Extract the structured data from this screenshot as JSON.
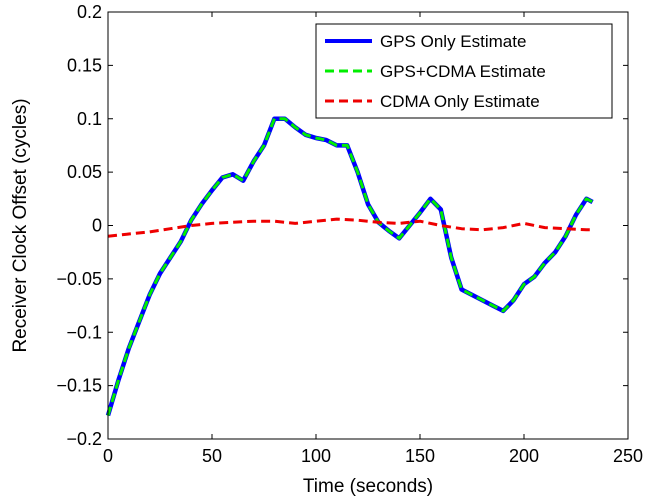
{
  "chart_data": {
    "type": "line",
    "title": "",
    "xlabel": "Time (seconds)",
    "ylabel": "Receiver Clock Offset (cycles)",
    "xlim": [
      0,
      250
    ],
    "ylim": [
      -0.2,
      0.2
    ],
    "grid": false,
    "legend_position": "top-right",
    "x_ticks": [
      0,
      50,
      100,
      150,
      200,
      250
    ],
    "x_tick_labels": [
      "0",
      "50",
      "100",
      "150",
      "200",
      "250"
    ],
    "y_ticks": [
      -0.2,
      -0.15,
      -0.1,
      -0.05,
      0,
      0.05,
      0.1,
      0.15,
      0.2
    ],
    "y_tick_labels": [
      "−0.2",
      "−0.15",
      "−0.1",
      "−0.05",
      "0",
      "0.05",
      "0.1",
      "0.15",
      "0.2"
    ],
    "series": [
      {
        "name": "GPS Only Estimate",
        "color": "#0000ff",
        "style": "solid",
        "x": [
          0,
          5,
          10,
          15,
          20,
          25,
          30,
          35,
          40,
          45,
          50,
          55,
          60,
          65,
          70,
          75,
          80,
          85,
          90,
          95,
          100,
          105,
          110,
          115,
          120,
          125,
          130,
          135,
          140,
          145,
          150,
          155,
          160,
          165,
          170,
          175,
          180,
          185,
          190,
          195,
          200,
          205,
          210,
          215,
          220,
          225,
          230,
          233
        ],
        "y": [
          -0.178,
          -0.145,
          -0.115,
          -0.09,
          -0.065,
          -0.045,
          -0.03,
          -0.015,
          0.005,
          0.02,
          0.033,
          0.045,
          0.048,
          0.042,
          0.06,
          0.075,
          0.1,
          0.1,
          0.092,
          0.085,
          0.082,
          0.08,
          0.075,
          0.075,
          0.05,
          0.02,
          0.003,
          -0.005,
          -0.012,
          0.0,
          0.012,
          0.025,
          0.015,
          -0.03,
          -0.06,
          -0.065,
          -0.07,
          -0.075,
          -0.08,
          -0.07,
          -0.055,
          -0.048,
          -0.035,
          -0.025,
          -0.01,
          0.01,
          0.025,
          0.022
        ]
      },
      {
        "name": "GPS+CDMA Estimate",
        "color": "#00ee00",
        "style": "dashed",
        "x": [
          0,
          5,
          10,
          15,
          20,
          25,
          30,
          35,
          40,
          45,
          50,
          55,
          60,
          65,
          70,
          75,
          80,
          85,
          90,
          95,
          100,
          105,
          110,
          115,
          120,
          125,
          130,
          135,
          140,
          145,
          150,
          155,
          160,
          165,
          170,
          175,
          180,
          185,
          190,
          195,
          200,
          205,
          210,
          215,
          220,
          225,
          230,
          233
        ],
        "y": [
          -0.178,
          -0.145,
          -0.115,
          -0.09,
          -0.065,
          -0.045,
          -0.03,
          -0.015,
          0.005,
          0.02,
          0.033,
          0.045,
          0.048,
          0.042,
          0.06,
          0.075,
          0.1,
          0.1,
          0.092,
          0.085,
          0.082,
          0.08,
          0.075,
          0.075,
          0.05,
          0.02,
          0.003,
          -0.005,
          -0.012,
          0.0,
          0.012,
          0.025,
          0.015,
          -0.03,
          -0.06,
          -0.065,
          -0.07,
          -0.075,
          -0.08,
          -0.07,
          -0.055,
          -0.048,
          -0.035,
          -0.025,
          -0.01,
          0.01,
          0.025,
          0.022
        ]
      },
      {
        "name": "CDMA Only Estimate",
        "color": "#ee0000",
        "style": "dashed",
        "x": [
          0,
          10,
          20,
          30,
          40,
          50,
          60,
          70,
          80,
          90,
          100,
          110,
          120,
          130,
          140,
          150,
          160,
          170,
          180,
          190,
          200,
          210,
          220,
          230,
          233
        ],
        "y": [
          -0.01,
          -0.008,
          -0.006,
          -0.003,
          0.0,
          0.002,
          0.003,
          0.004,
          0.004,
          0.002,
          0.004,
          0.006,
          0.005,
          0.003,
          0.002,
          0.004,
          0.0,
          -0.003,
          -0.004,
          -0.002,
          0.002,
          -0.002,
          -0.003,
          -0.004,
          -0.004
        ]
      }
    ]
  }
}
